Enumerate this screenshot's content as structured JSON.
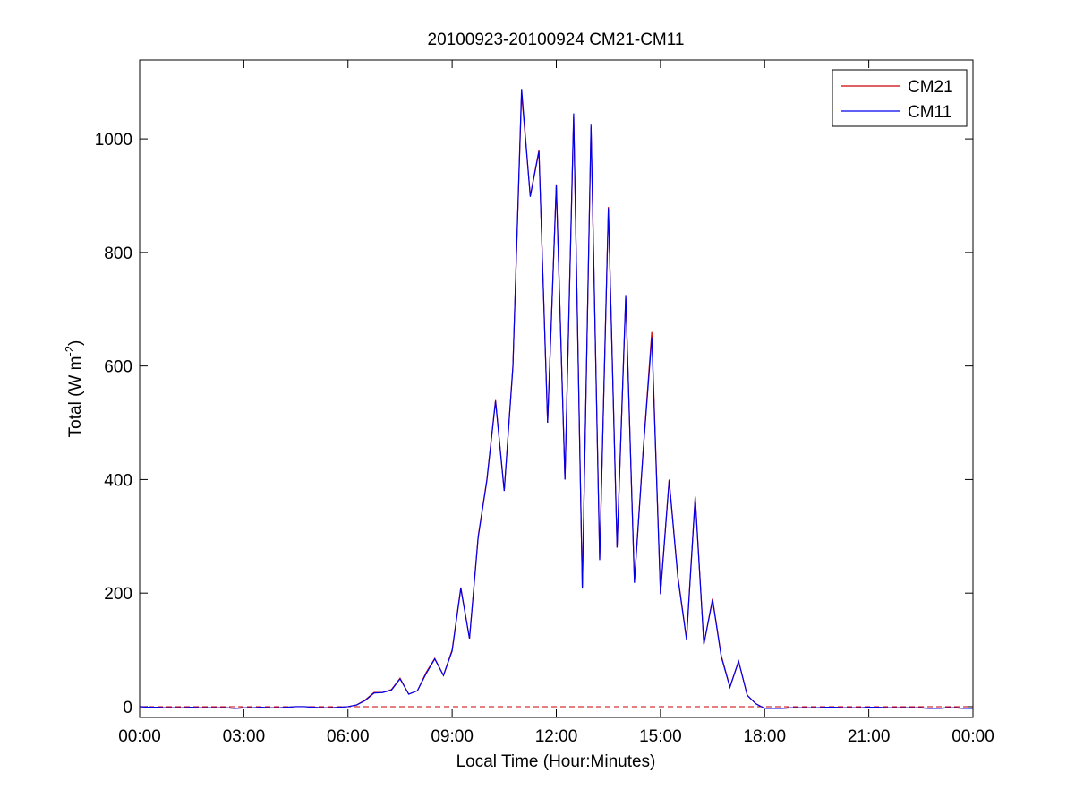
{
  "chart_data": {
    "type": "line",
    "title": "20100923-20100924 CM21-CM11",
    "xlabel": "Local Time (Hour:Minutes)",
    "ylabel": [
      "Total (W m",
      "-2",
      ")"
    ],
    "x": [
      0,
      0.25,
      0.5,
      0.75,
      1,
      1.25,
      1.5,
      1.75,
      2,
      2.25,
      2.5,
      2.75,
      3,
      3.25,
      3.5,
      3.75,
      4,
      4.25,
      4.5,
      4.75,
      5,
      5.25,
      5.5,
      5.75,
      6,
      6.25,
      6.5,
      6.75,
      7,
      7.25,
      7.5,
      7.75,
      8,
      8.25,
      8.5,
      8.75,
      9,
      9.25,
      9.5,
      9.75,
      10,
      10.25,
      10.5,
      10.75,
      11,
      11.25,
      11.5,
      11.75,
      12,
      12.25,
      12.5,
      12.75,
      13,
      13.25,
      13.5,
      13.75,
      14,
      14.25,
      14.5,
      14.75,
      15,
      15.25,
      15.5,
      15.75,
      16,
      16.25,
      16.5,
      16.75,
      17,
      17.25,
      17.5,
      17.75,
      18,
      18.25,
      18.5,
      18.75,
      19,
      19.25,
      19.5,
      19.75,
      20,
      20.25,
      20.5,
      20.75,
      21,
      21.25,
      21.5,
      21.75,
      22,
      22.25,
      22.5,
      22.75,
      23,
      23.25,
      23.5,
      23.75,
      24
    ],
    "series": [
      {
        "name": "CM21",
        "color": "#cc0000",
        "values": [
          0,
          -1,
          -1,
          -2,
          -2,
          -2,
          -1,
          -2,
          -2,
          -2,
          -2,
          -3,
          -2,
          -2,
          -1,
          -2,
          -2,
          -1,
          0,
          0,
          -1,
          -2,
          -2,
          -1,
          0,
          3,
          12,
          25,
          25,
          30,
          50,
          22,
          28,
          60,
          85,
          55,
          100,
          210,
          120,
          300,
          400,
          540,
          380,
          600,
          1080,
          900,
          980,
          500,
          920,
          400,
          1040,
          210,
          1020,
          260,
          880,
          280,
          720,
          220,
          450,
          660,
          200,
          400,
          230,
          120,
          370,
          110,
          190,
          90,
          35,
          80,
          20,
          5,
          -3,
          -3,
          -3,
          -2,
          -2,
          -2,
          -2,
          -1,
          -1,
          -2,
          -2,
          -2,
          -1,
          -1,
          -2,
          -2,
          -2,
          -2,
          -2,
          -3,
          -3,
          -2,
          -2,
          -3,
          -3
        ]
      },
      {
        "name": "CM11",
        "color": "#0000ee",
        "values": [
          0,
          -1,
          -1,
          -2,
          -2,
          -2,
          -1,
          -2,
          -2,
          -2,
          -2,
          -3,
          -2,
          -2,
          -1,
          -2,
          -2,
          -1,
          0,
          0,
          -1,
          -2,
          -2,
          -1,
          0,
          3,
          11,
          24,
          25,
          29,
          49,
          22,
          28,
          58,
          84,
          55,
          98,
          208,
          120,
          298,
          398,
          538,
          380,
          598,
          1088,
          898,
          978,
          500,
          918,
          400,
          1045,
          208,
          1025,
          258,
          878,
          280,
          725,
          218,
          448,
          650,
          198,
          398,
          228,
          118,
          368,
          110,
          188,
          88,
          34,
          80,
          20,
          5,
          -3,
          -3,
          -3,
          -2,
          -2,
          -2,
          -2,
          -1,
          -1,
          -2,
          -2,
          -2,
          -1,
          -1,
          -2,
          -2,
          -2,
          -2,
          -2,
          -3,
          -3,
          -2,
          -2,
          -3,
          -3
        ]
      }
    ],
    "reference_line": {
      "y": 0,
      "color": "#cc0000",
      "style": "dashed"
    },
    "xlim": [
      0,
      24
    ],
    "xticks": [
      {
        "value": 0,
        "label": "00:00"
      },
      {
        "value": 3,
        "label": "03:00"
      },
      {
        "value": 6,
        "label": "06:00"
      },
      {
        "value": 9,
        "label": "09:00"
      },
      {
        "value": 12,
        "label": "12:00"
      },
      {
        "value": 15,
        "label": "15:00"
      },
      {
        "value": 18,
        "label": "18:00"
      },
      {
        "value": 21,
        "label": "21:00"
      },
      {
        "value": 24,
        "label": "00:00"
      }
    ],
    "ylim": [
      -19,
      1139
    ],
    "yticks": [
      0,
      200,
      400,
      600,
      800,
      1000
    ],
    "legend": "upper right",
    "grid": false
  }
}
